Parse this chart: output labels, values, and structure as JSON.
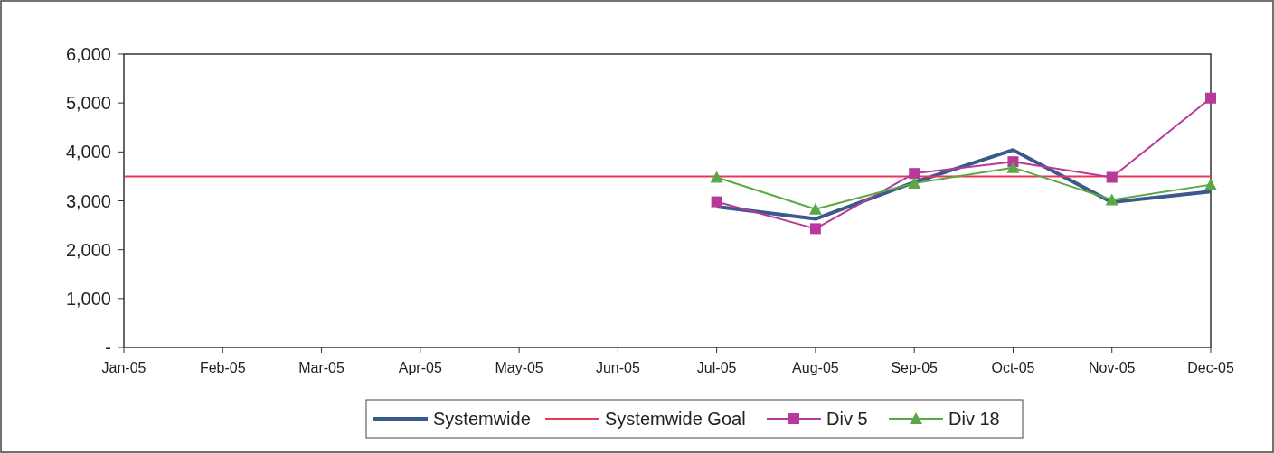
{
  "chart_data": {
    "type": "line",
    "categories": [
      "Jan-05",
      "Feb-05",
      "Mar-05",
      "Apr-05",
      "May-05",
      "Jun-05",
      "Jul-05",
      "Aug-05",
      "Sep-05",
      "Oct-05",
      "Nov-05",
      "Dec-05"
    ],
    "series": [
      {
        "name": "Systemwide",
        "color": "#3a5a8c",
        "marker": "none",
        "values": [
          null,
          null,
          null,
          null,
          null,
          null,
          2880,
          2630,
          3380,
          4040,
          2970,
          3190
        ]
      },
      {
        "name": "Systemwide Goal",
        "color": "#e8385a",
        "marker": "none",
        "values": [
          3500,
          3500,
          3500,
          3500,
          3500,
          3500,
          3500,
          3500,
          3500,
          3500,
          3500,
          3500
        ]
      },
      {
        "name": "Div 5",
        "color": "#b8399a",
        "marker": "square",
        "values": [
          null,
          null,
          null,
          null,
          null,
          null,
          2980,
          2430,
          3560,
          3800,
          3480,
          5100
        ]
      },
      {
        "name": "Div 18",
        "color": "#5aa845",
        "marker": "triangle",
        "values": [
          null,
          null,
          null,
          null,
          null,
          null,
          3480,
          2830,
          3360,
          3680,
          3020,
          3330
        ]
      }
    ],
    "ylim": [
      0,
      6000
    ],
    "yticks": [
      {
        "value": 0,
        "label": "-"
      },
      {
        "value": 1000,
        "label": "1,000"
      },
      {
        "value": 2000,
        "label": "2,000"
      },
      {
        "value": 3000,
        "label": "3,000"
      },
      {
        "value": 4000,
        "label": "4,000"
      },
      {
        "value": 5000,
        "label": "5,000"
      },
      {
        "value": 6000,
        "label": "6,000"
      }
    ],
    "grid": false,
    "legend": "bottom"
  }
}
